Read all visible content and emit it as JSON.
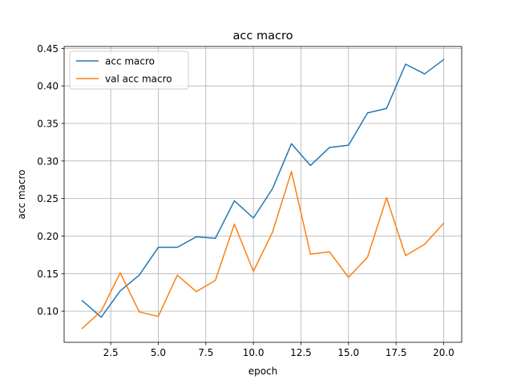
{
  "chart_data": {
    "type": "line",
    "title": "acc macro",
    "xlabel": "epoch",
    "ylabel": "acc macro",
    "xlim": [
      0.05,
      20.95
    ],
    "ylim": [
      0.0585,
      0.4525
    ],
    "xticks": [
      2.5,
      5.0,
      7.5,
      10.0,
      12.5,
      15.0,
      17.5,
      20.0
    ],
    "xtick_labels": [
      "2.5",
      "5.0",
      "7.5",
      "10.0",
      "12.5",
      "15.0",
      "17.5",
      "20.0"
    ],
    "yticks": [
      0.1,
      0.15,
      0.2,
      0.25,
      0.3,
      0.35,
      0.4,
      0.45
    ],
    "ytick_labels": [
      "0.10",
      "0.15",
      "0.20",
      "0.25",
      "0.30",
      "0.35",
      "0.40",
      "0.45"
    ],
    "grid": true,
    "legend_position": "upper-left",
    "x": [
      1,
      2,
      3,
      4,
      5,
      6,
      7,
      8,
      9,
      10,
      11,
      12,
      13,
      14,
      15,
      16,
      17,
      18,
      19,
      20
    ],
    "series": [
      {
        "name": "acc macro",
        "color": "#1f77b4",
        "values": [
          0.114,
          0.092,
          0.127,
          0.148,
          0.185,
          0.185,
          0.199,
          0.197,
          0.247,
          0.224,
          0.263,
          0.323,
          0.294,
          0.318,
          0.321,
          0.364,
          0.37,
          0.429,
          0.416,
          0.435
        ]
      },
      {
        "name": "val acc macro",
        "color": "#ff7f0e",
        "values": [
          0.077,
          0.1,
          0.151,
          0.099,
          0.093,
          0.148,
          0.126,
          0.141,
          0.216,
          0.153,
          0.205,
          0.286,
          0.176,
          0.179,
          0.145,
          0.172,
          0.251,
          0.174,
          0.189,
          0.217
        ]
      }
    ]
  }
}
